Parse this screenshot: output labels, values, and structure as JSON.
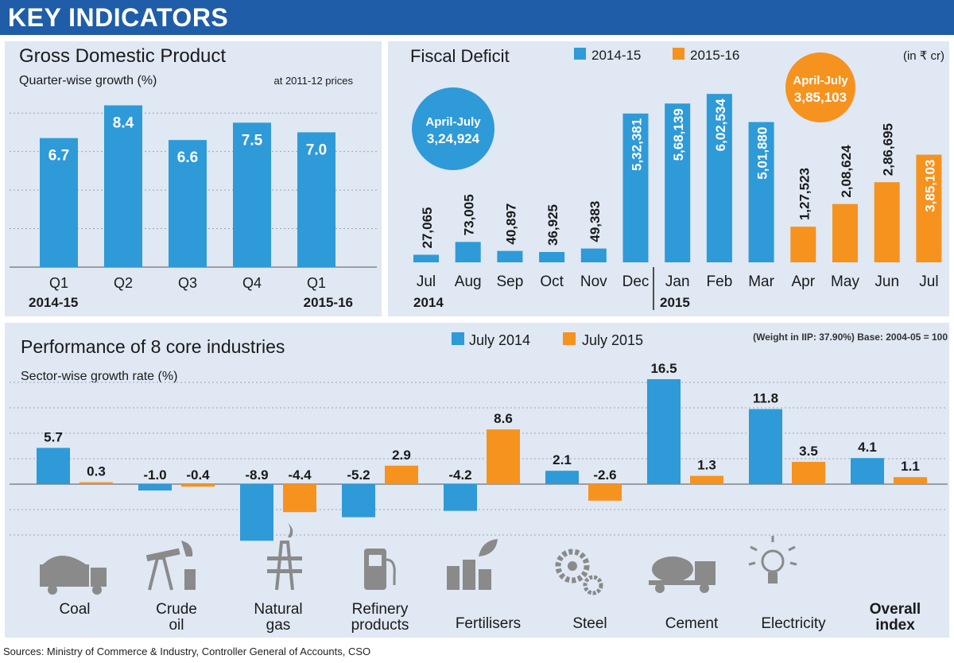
{
  "header": {
    "title": "KEY INDICATORS"
  },
  "source": "Sources: Ministry of Commerce & Industry, Controller General of Accounts, CSO",
  "colors": {
    "blue": "#2e9ad8",
    "orange": "#f6921e",
    "banner": "#1f5da8",
    "panel": "#dfe8f3",
    "icon": "#8a8a8a"
  },
  "chart_data": [
    {
      "type": "bar",
      "title": "Gross Domestic Product",
      "subtitle": "Quarter-wise growth (%)",
      "note": "at 2011-12 prices",
      "categories": [
        "Q1",
        "Q2",
        "Q3",
        "Q4",
        "Q1"
      ],
      "year_labels": [
        "2014-15",
        "2015-16"
      ],
      "values": [
        6.7,
        8.4,
        6.6,
        7.5,
        7.0
      ],
      "value_labels": [
        "6.7",
        "8.4",
        "6.6",
        "7.5",
        "7.0"
      ],
      "ylim": [
        0,
        9
      ],
      "grid": true
    },
    {
      "type": "bar",
      "title": "Fiscal Deficit",
      "unit": "(in ₹ cr)",
      "categories": [
        "Jul",
        "Aug",
        "Sep",
        "Oct",
        "Nov",
        "Dec",
        "Jan",
        "Feb",
        "Mar",
        "Apr",
        "May",
        "Jun",
        "Jul"
      ],
      "year_labels": [
        "2014",
        "2015"
      ],
      "series": [
        {
          "name": "2014-15",
          "values": [
            27065,
            73005,
            40897,
            36925,
            49383,
            532381,
            568139,
            602534,
            501880,
            null,
            null,
            null,
            null
          ],
          "labels": [
            "27,065",
            "73,005",
            "40,897",
            "36,925",
            "49,383",
            "5,32,381",
            "5,68,139",
            "6,02,534",
            "5,01,880",
            "",
            "",
            "",
            ""
          ]
        },
        {
          "name": "2015-16",
          "values": [
            null,
            null,
            null,
            null,
            null,
            null,
            null,
            null,
            null,
            127523,
            208624,
            286695,
            385103
          ],
          "labels": [
            "",
            "",
            "",
            "",
            "",
            "",
            "",
            "",
            "",
            "1,27,523",
            "2,08,624",
            "2,86,695",
            "3,85,103"
          ]
        }
      ],
      "callouts": [
        {
          "line1": "April-July",
          "line2": "3,24,924"
        },
        {
          "line1": "April-July",
          "line2": "3,85,103"
        }
      ],
      "ylim": [
        0,
        650000
      ]
    },
    {
      "type": "bar",
      "title": "Performance of 8 core industries",
      "subtitle": "Sector-wise growth rate (%)",
      "note": "(Weight in IIP: 37.90%) Base: 2004-05 = 100",
      "categories": [
        "Coal",
        "Crude oil",
        "Natural gas",
        "Refinery products",
        "Fertilisers",
        "Steel",
        "Cement",
        "Electricity",
        "Overall index"
      ],
      "series": [
        {
          "name": "July 2014",
          "values": [
            5.7,
            -1.0,
            -8.9,
            -5.2,
            -4.2,
            2.1,
            16.5,
            11.8,
            4.1
          ],
          "labels": [
            "5.7",
            "-1.0",
            "-8.9",
            "-5.2",
            "-4.2",
            "2.1",
            "16.5",
            "11.8",
            "4.1"
          ]
        },
        {
          "name": "July 2015",
          "values": [
            0.3,
            -0.4,
            -4.4,
            2.9,
            8.6,
            -2.6,
            1.3,
            3.5,
            1.1
          ],
          "labels": [
            "0.3",
            "-0.4",
            "-4.4",
            "2.9",
            "8.6",
            "-2.6",
            "1.3",
            "3.5",
            "1.1"
          ]
        }
      ],
      "icons": [
        "coal-truck-icon",
        "oil-pump-icon",
        "gas-rig-icon",
        "refinery-pump-icon",
        "fertiliser-plant-icon",
        "steel-gears-icon",
        "cement-mixer-icon",
        "electricity-bulb-icon"
      ],
      "ylim": [
        -10,
        17
      ]
    }
  ]
}
